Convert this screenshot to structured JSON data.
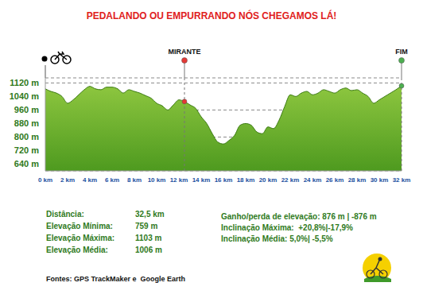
{
  "chart_data": {
    "type": "area",
    "title": "PEDALANDO OU EMPURRANDO NÓS CHEGAMOS LÁ!",
    "x": [
      0,
      0.5,
      1,
      1.5,
      2,
      2.5,
      3,
      3.5,
      4,
      4.5,
      5,
      5.5,
      6,
      6.5,
      7,
      7.5,
      8,
      8.5,
      9,
      9.5,
      10,
      10.5,
      11,
      11.5,
      12,
      12.5,
      13,
      13.5,
      14,
      14.5,
      15,
      15.5,
      16,
      16.5,
      17,
      17.5,
      18,
      18.5,
      19,
      19.5,
      20,
      20.5,
      21,
      21.5,
      22,
      22.5,
      23,
      23.5,
      24,
      24.5,
      25,
      25.5,
      26,
      26.5,
      27,
      27.5,
      28,
      28.5,
      29,
      29.5,
      30,
      30.5,
      31,
      31.5,
      32
    ],
    "values": [
      1085,
      1070,
      1060,
      1040,
      1000,
      1020,
      1050,
      1080,
      1100,
      1085,
      1080,
      1095,
      1095,
      1085,
      1060,
      1080,
      1070,
      1060,
      1045,
      1030,
      1000,
      985,
      960,
      990,
      1020,
      1010,
      990,
      970,
      920,
      880,
      820,
      770,
      759,
      780,
      810,
      870,
      880,
      870,
      830,
      820,
      860,
      850,
      900,
      980,
      1050,
      1040,
      1060,
      1070,
      1050,
      1060,
      1080,
      1070,
      1060,
      1080,
      1090,
      1075,
      1080,
      1060,
      1040,
      1000,
      1020,
      1040,
      1060,
      1080,
      1103
    ],
    "color": "#8dc63f",
    "xlim": [
      0,
      32
    ],
    "xticks": [
      {
        "value": 0,
        "label": "0 km"
      },
      {
        "value": 2,
        "label": "2 km"
      },
      {
        "value": 4,
        "label": "4 km"
      },
      {
        "value": 6,
        "label": "6 km"
      },
      {
        "value": 8,
        "label": "8 km"
      },
      {
        "value": 10,
        "label": "10 km"
      },
      {
        "value": 12,
        "label": "12 km"
      },
      {
        "value": 14,
        "label": "14 km"
      },
      {
        "value": 16,
        "label": "16 km"
      },
      {
        "value": 18,
        "label": "18 km"
      },
      {
        "value": 20,
        "label": "20 km"
      },
      {
        "value": 22,
        "label": "22 km"
      },
      {
        "value": 24,
        "label": "24 km"
      },
      {
        "value": 26,
        "label": "26 km"
      },
      {
        "value": 28,
        "label": "28 km"
      },
      {
        "value": 30,
        "label": "30 km"
      },
      {
        "value": 32,
        "label": "32 km"
      }
    ],
    "ylim": [
      600,
      1150
    ],
    "yticks": [
      {
        "value": 640,
        "label": "640 m"
      },
      {
        "value": 720,
        "label": "720 m"
      },
      {
        "value": 800,
        "label": "800 m"
      },
      {
        "value": 880,
        "label": "880 m"
      },
      {
        "value": 960,
        "label": "960 m"
      },
      {
        "value": 1040,
        "label": "1040 m"
      },
      {
        "value": 1120,
        "label": "1120 m"
      }
    ],
    "grid": true,
    "annotations": [
      {
        "text": "MIRANTE",
        "x": 12.5,
        "y": 1010,
        "color": "#e53935"
      },
      {
        "text": "FIM",
        "x": 32,
        "y": 1103,
        "color": "#4caf50"
      }
    ]
  },
  "stats_left": [
    {
      "label": "Distância:",
      "value": "32,5 km"
    },
    {
      "label": "Elevação Mínima:",
      "value": "759 m"
    },
    {
      "label": "Elevação Máxima:",
      "value": "1103 m"
    },
    {
      "label": "Elevação Média:",
      "value": "1006 m"
    }
  ],
  "stats_right": [
    "Ganho/perda de elevação: 876 m | -876 m",
    "Inclinação Máxima:  +20,8%|-17,9%",
    "Inclinação Média: 5,0%| -5,5%"
  ],
  "footer": "Fontes: GPS TrackMaker e  Google Earth"
}
